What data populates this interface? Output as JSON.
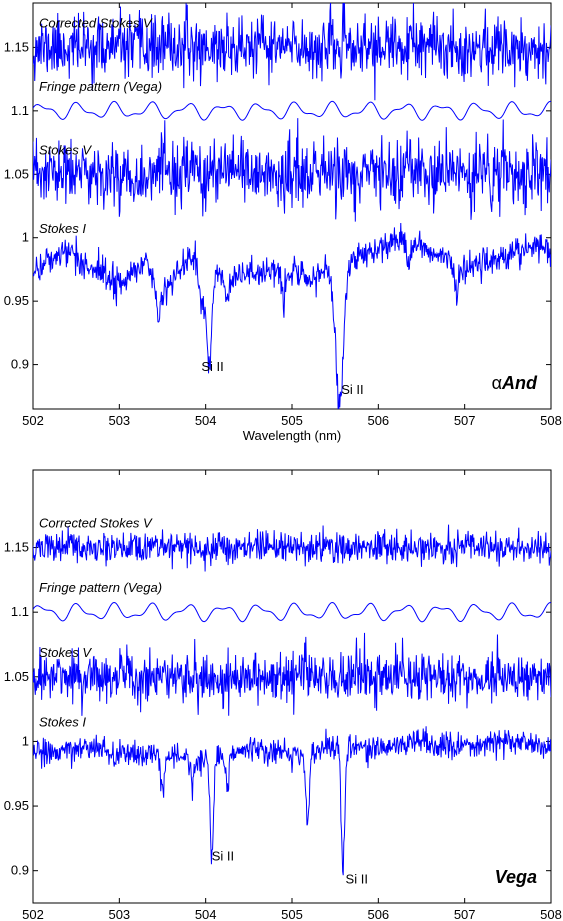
{
  "chart_data": [
    {
      "type": "line",
      "star_label": {
        "prefix": "α",
        "name": "And"
      },
      "xlabel": "Wavelength (nm)",
      "ylabel": "",
      "xlim": [
        502,
        508
      ],
      "ylim": [
        0.865,
        1.185
      ],
      "xticks": [
        "502",
        "503",
        "504",
        "505",
        "506",
        "507",
        "508"
      ],
      "yticks": [
        "0.9",
        "0.95",
        "1",
        "1.05",
        "1.1",
        "1.15"
      ],
      "grid": false,
      "series": [
        {
          "name": "Corrected Stokes V",
          "kind": "noise",
          "level": 1.15,
          "noise": 0.012,
          "seed": 11
        },
        {
          "name": "Fringe pattern (Vega)",
          "kind": "fringe",
          "level": 1.1,
          "amplitude": 0.005,
          "seed": 3
        },
        {
          "name": "Stokes V",
          "kind": "noise",
          "level": 1.05,
          "noise": 0.013,
          "seed": 23
        },
        {
          "name": "Stokes I",
          "kind": "spectrum",
          "level": 0.985,
          "noise": 0.006,
          "seed": 41,
          "profile": [
            [
              502,
              0.975
            ],
            [
              502.4,
              0.99
            ],
            [
              502.7,
              0.975
            ],
            [
              503,
              0.965
            ],
            [
              503.3,
              0.98
            ],
            [
              503.5,
              0.955
            ],
            [
              503.8,
              0.985
            ],
            [
              504.3,
              0.97
            ],
            [
              504.8,
              0.975
            ],
            [
              505.2,
              0.968
            ],
            [
              505.8,
              0.985
            ],
            [
              506.3,
              1.0
            ],
            [
              506.6,
              0.99
            ],
            [
              507,
              0.975
            ],
            [
              507.4,
              0.985
            ],
            [
              507.8,
              0.995
            ],
            [
              508,
              0.99
            ]
          ],
          "lines": [
            {
              "center": 504.04,
              "depth": 0.075,
              "width": 0.035
            },
            {
              "center": 505.55,
              "depth": 0.11,
              "width": 0.045
            },
            {
              "center": 503.45,
              "depth": 0.025,
              "width": 0.02
            },
            {
              "center": 503.95,
              "depth": 0.03,
              "width": 0.03
            },
            {
              "center": 504.25,
              "depth": 0.02,
              "width": 0.02
            },
            {
              "center": 504.9,
              "depth": 0.02,
              "width": 0.025
            },
            {
              "center": 506.35,
              "depth": 0.02,
              "width": 0.02
            },
            {
              "center": 506.9,
              "depth": 0.025,
              "width": 0.02
            }
          ]
        }
      ],
      "annotations": [
        {
          "text": "Si II",
          "x": 504.08,
          "y": 0.895
        },
        {
          "text": "Si II",
          "x": 505.7,
          "y": 0.877
        }
      ]
    },
    {
      "type": "line",
      "star_label": {
        "prefix": "",
        "name": "Vega"
      },
      "xlabel": "Wavelength (nm)",
      "ylabel": "",
      "xlim": [
        502,
        508
      ],
      "ylim": [
        0.875,
        1.21
      ],
      "xticks": [
        "502",
        "503",
        "504",
        "505",
        "506",
        "507",
        "508"
      ],
      "yticks": [
        "0.9",
        "0.95",
        "1",
        "1.05",
        "1.1",
        "1.15"
      ],
      "grid": false,
      "series": [
        {
          "name": "Corrected Stokes V",
          "kind": "noise",
          "level": 1.15,
          "noise": 0.006,
          "seed": 57
        },
        {
          "name": "Fringe pattern (Vega)",
          "kind": "fringe",
          "level": 1.1,
          "amplitude": 0.005,
          "seed": 3
        },
        {
          "name": "Stokes V",
          "kind": "noise",
          "level": 1.05,
          "noise": 0.01,
          "seed": 71
        },
        {
          "name": "Stokes I",
          "kind": "spectrum",
          "level": 0.993,
          "noise": 0.005,
          "seed": 89,
          "profile": [
            [
              502,
              0.99
            ],
            [
              502.5,
              0.995
            ],
            [
              503,
              0.99
            ],
            [
              503.5,
              0.99
            ],
            [
              504,
              0.985
            ],
            [
              504.5,
              0.995
            ],
            [
              505,
              0.99
            ],
            [
              505.5,
              0.995
            ],
            [
              506,
              0.995
            ],
            [
              506.5,
              1.0
            ],
            [
              507,
              0.995
            ],
            [
              507.5,
              1.0
            ],
            [
              508,
              0.995
            ]
          ],
          "lines": [
            {
              "center": 503.5,
              "depth": 0.025,
              "width": 0.02
            },
            {
              "center": 504.07,
              "depth": 0.075,
              "width": 0.02
            },
            {
              "center": 505.18,
              "depth": 0.055,
              "width": 0.02
            },
            {
              "center": 505.59,
              "depth": 0.095,
              "width": 0.02
            },
            {
              "center": 503.85,
              "depth": 0.02,
              "width": 0.02
            },
            {
              "center": 504.25,
              "depth": 0.02,
              "width": 0.02
            }
          ]
        }
      ],
      "annotations": [
        {
          "text": "Si II",
          "x": 504.2,
          "y": 0.908
        },
        {
          "text": "Si II",
          "x": 505.75,
          "y": 0.89
        }
      ]
    }
  ]
}
